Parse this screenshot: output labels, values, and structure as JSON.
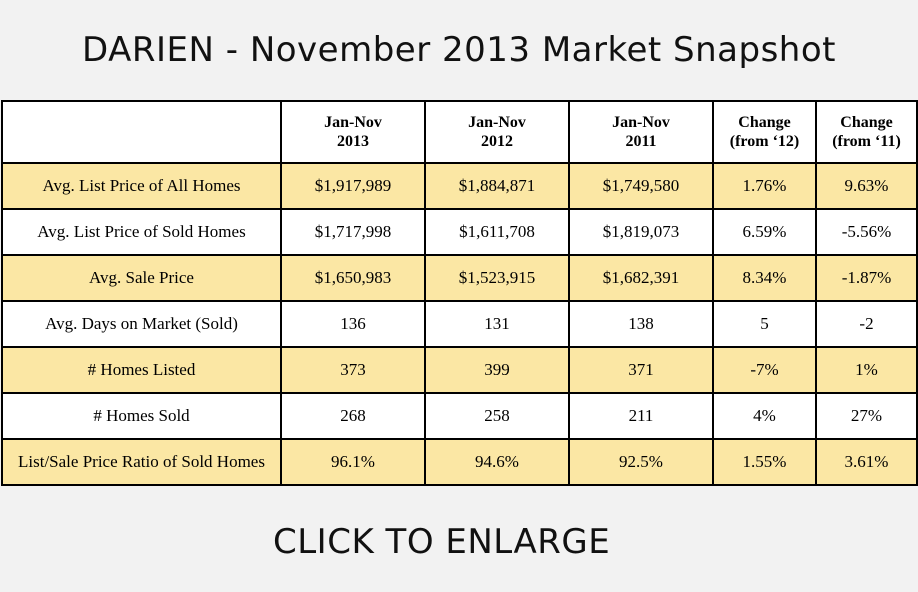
{
  "title": "DARIEN - November 2013 Market Snapshot",
  "table": {
    "headers": [
      {
        "line1": "",
        "line2": ""
      },
      {
        "line1": "Jan-Nov",
        "line2": "2013"
      },
      {
        "line1": "Jan-Nov",
        "line2": "2012"
      },
      {
        "line1": "Jan-Nov",
        "line2": "2011"
      },
      {
        "line1": "Change",
        "line2": "(from ‘12)"
      },
      {
        "line1": "Change",
        "line2": "(from ‘11)"
      }
    ],
    "rows": [
      {
        "label": "Avg. List Price of All Homes",
        "v2013": "$1,917,989",
        "v2012": "$1,884,871",
        "v2011": "$1,749,580",
        "ch12": "1.76%",
        "ch11": "9.63%"
      },
      {
        "label": "Avg. List Price of Sold Homes",
        "v2013": "$1,717,998",
        "v2012": "$1,611,708",
        "v2011": "$1,819,073",
        "ch12": "6.59%",
        "ch11": "-5.56%"
      },
      {
        "label": "Avg. Sale Price",
        "v2013": "$1,650,983",
        "v2012": "$1,523,915",
        "v2011": "$1,682,391",
        "ch12": "8.34%",
        "ch11": "-1.87%"
      },
      {
        "label": "Avg. Days on Market (Sold)",
        "v2013": "136",
        "v2012": "131",
        "v2011": "138",
        "ch12": "5",
        "ch11": "-2"
      },
      {
        "label": "# Homes Listed",
        "v2013": "373",
        "v2012": "399",
        "v2011": "371",
        "ch12": "-7%",
        "ch11": "1%"
      },
      {
        "label": "# Homes Sold",
        "v2013": "268",
        "v2012": "258",
        "v2011": "211",
        "ch12": "4%",
        "ch11": "27%"
      },
      {
        "label": "List/Sale Price Ratio of Sold Homes",
        "v2013": "96.1%",
        "v2012": "94.6%",
        "v2011": "92.5%",
        "ch12": "1.55%",
        "ch11": "3.61%"
      }
    ]
  },
  "cta": "CLICK TO ENLARGE",
  "colors": {
    "highlight_row": "#fbe7a4",
    "plain_row": "#ffffff",
    "background": "#f2f2f2"
  }
}
